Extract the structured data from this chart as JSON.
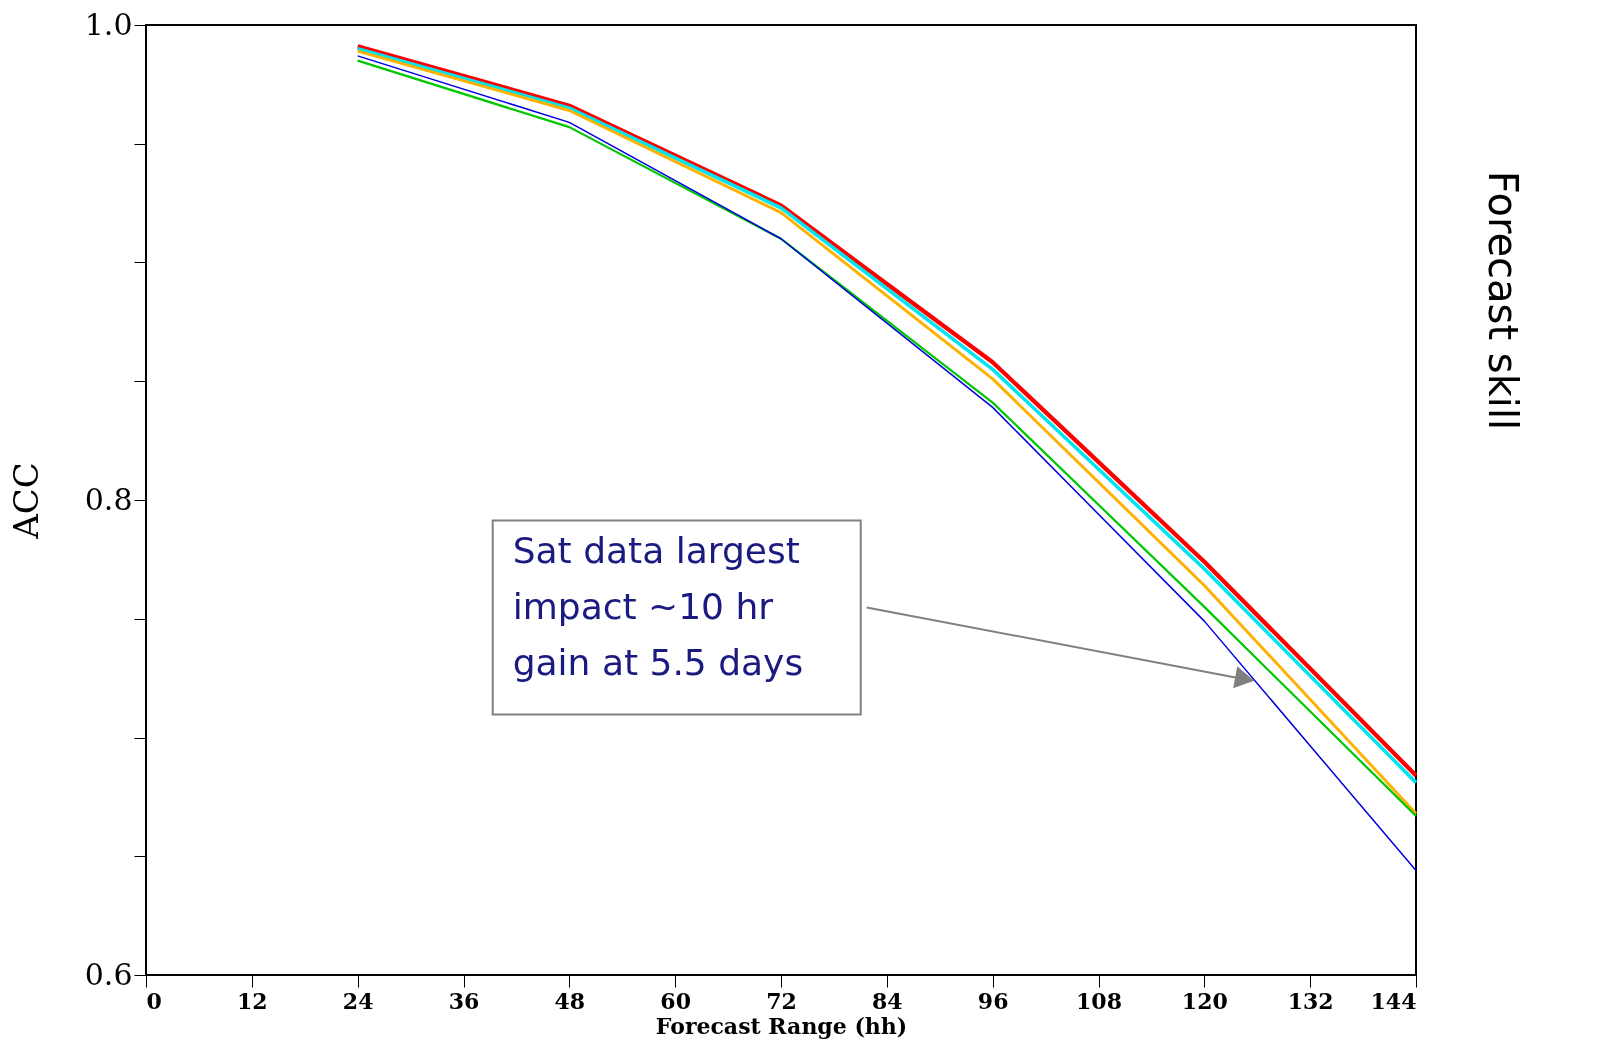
{
  "chart_data": {
    "type": "line",
    "xlabel": "Forecast Range (hh)",
    "ylabel": "ACC",
    "x": [
      24,
      48,
      72,
      96,
      120,
      144
    ],
    "series": [
      {
        "color": "#ff0000",
        "values": [
          0.991,
          0.966,
          0.924,
          0.858,
          0.774,
          0.684
        ]
      },
      {
        "color": "#00e5ee",
        "values": [
          0.99,
          0.965,
          0.923,
          0.855,
          0.771,
          0.681
        ]
      },
      {
        "color": "#ffb000",
        "values": [
          0.989,
          0.964,
          0.921,
          0.851,
          0.764,
          0.668
        ]
      },
      {
        "color": "#00c800",
        "values": [
          0.985,
          0.957,
          0.91,
          0.841,
          0.755,
          0.667
        ]
      },
      {
        "color": "#0000e0",
        "values": [
          0.987,
          0.959,
          0.91,
          0.839,
          0.749,
          0.644
        ]
      }
    ],
    "xlim": [
      0,
      144
    ],
    "xticks": [
      0,
      12,
      24,
      36,
      48,
      60,
      72,
      84,
      96,
      108,
      120,
      132,
      144
    ],
    "ylim": [
      0.6,
      1.0
    ],
    "yticks": [
      0.6,
      {
        "value": 0.65,
        "label": null
      },
      {
        "value": 0.7,
        "label": null
      },
      {
        "value": 0.75,
        "label": null
      },
      0.8,
      {
        "value": 0.85,
        "label": null
      },
      {
        "value": 0.9,
        "label": null
      },
      {
        "value": 0.95,
        "label": null
      },
      {
        "value": 1.0,
        "label": "1.0"
      }
    ],
    "grid": false,
    "marker": "none",
    "line_style": "solid",
    "annotations": [
      "Sat data largest\nimpact ~10 hr\ngain at 5.5 days",
      "Forecast skill"
    ]
  }
}
